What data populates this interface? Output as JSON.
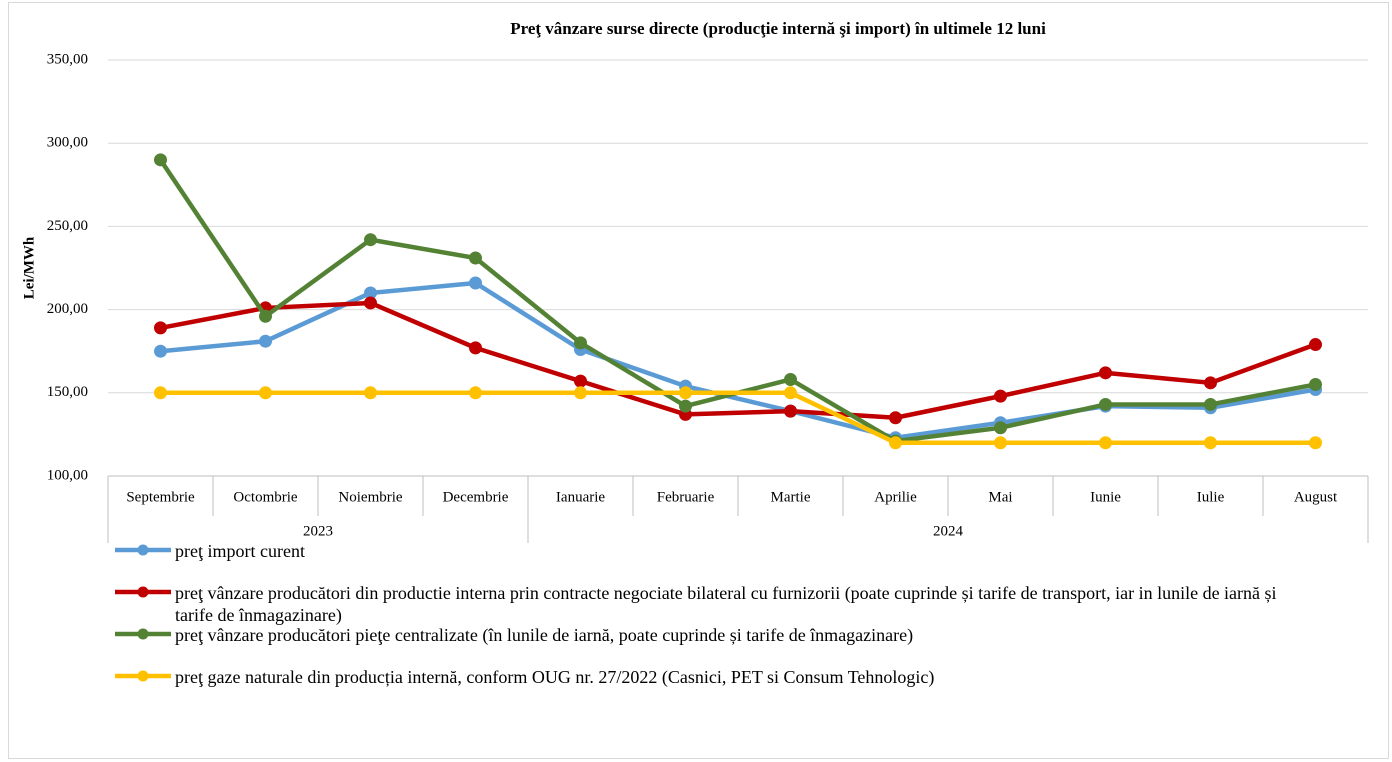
{
  "chart_data": {
    "type": "line",
    "title": "Preţ vânzare surse directe (producţie internă şi import) în ultimele 12 luni",
    "y_label": "Lei/MWh",
    "categories": [
      "Septembrie",
      "Octombrie",
      "Noiembrie",
      "Decembrie",
      "Ianuarie",
      "Februarie",
      "Martie",
      "Aprilie",
      "Mai",
      "Iunie",
      "Iulie",
      "August"
    ],
    "category_years": [
      "2023",
      "2023",
      "2023",
      "2023",
      "2024",
      "2024",
      "2024",
      "2024",
      "2024",
      "2024",
      "2024",
      "2024"
    ],
    "ylim": [
      100,
      350
    ],
    "yticks": [
      {
        "value": 100,
        "label": "100,00"
      },
      {
        "value": 150,
        "label": "150,00"
      },
      {
        "value": 200,
        "label": "200,00"
      },
      {
        "value": 250,
        "label": "250,00"
      },
      {
        "value": 300,
        "label": "300,00"
      },
      {
        "value": 350,
        "label": "350,00"
      }
    ],
    "grid": true,
    "legend": "bottom",
    "series": [
      {
        "name": "preţ import curent",
        "color": "#5b9bd5",
        "values": [
          175,
          181,
          210,
          216,
          176,
          154,
          139,
          123,
          132,
          142,
          141,
          152
        ]
      },
      {
        "name": "preţ vânzare producători din productie interna prin contracte negociate bilateral cu furnizorii (poate cuprinde și tarife de transport, iar in lunile de iarnă și tarife de înmagazinare)",
        "color": "#c00000",
        "values": [
          189,
          201,
          204,
          177,
          157,
          137,
          139,
          135,
          148,
          162,
          156,
          179
        ]
      },
      {
        "name": "preţ vânzare producători pieţe centralizate (în lunile de iarnă, poate cuprinde și tarife de înmagazinare)",
        "color": "#548235",
        "values": [
          290,
          196,
          242,
          231,
          180,
          142,
          158,
          121,
          129,
          143,
          143,
          155
        ]
      },
      {
        "name": "preţ gaze naturale din producția internă, conform OUG nr. 27/2022 (Casnici, PET si Consum Tehnologic)",
        "color": "#ffc000",
        "values": [
          150,
          150,
          150,
          150,
          150,
          150,
          150,
          120,
          120,
          120,
          120,
          120
        ]
      }
    ]
  }
}
